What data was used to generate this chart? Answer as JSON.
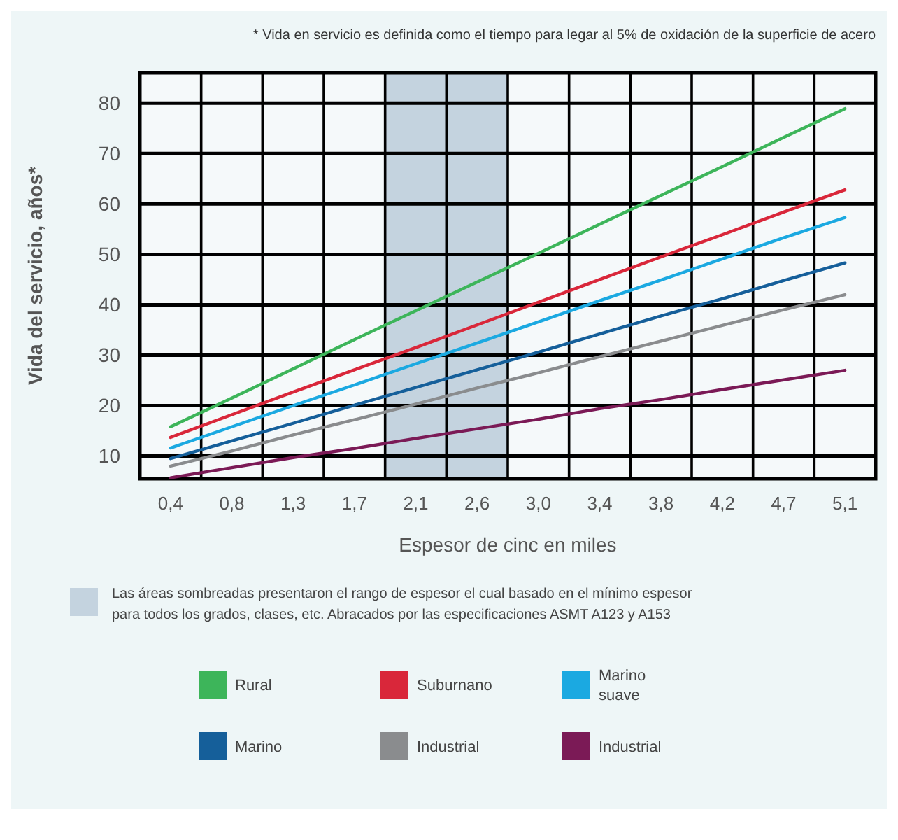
{
  "chart_data": {
    "type": "line",
    "xlabel": "Espesor de cinc en miles",
    "ylabel": "Vida del servicio, años*",
    "annotations": [
      "* Vida en servicio es definida como el tiempo para legar al 5% de oxidación de la superficie de acero"
    ],
    "categories": [
      "0,4",
      "0,8",
      "1,3",
      "1,7",
      "2,1",
      "2,6",
      "3,0",
      "3,4",
      "3,8",
      "4,2",
      "4,7",
      "5,1"
    ],
    "series": [
      {
        "name": "Rural",
        "color": "#3db55a",
        "values": [
          15.8,
          21.5,
          27.3,
          33.1,
          38.8,
          44.5,
          50.2,
          56.0,
          61.7,
          67.4,
          73.2,
          78.9
        ]
      },
      {
        "name": "Suburnano",
        "color": "#d9273a",
        "values": [
          13.7,
          18.2,
          22.7,
          27.1,
          31.5,
          36.0,
          40.5,
          45.0,
          49.5,
          53.9,
          58.4,
          62.8
        ]
      },
      {
        "name": "Marino suave",
        "color": "#1ba9e1",
        "values": [
          11.6,
          15.8,
          20.0,
          24.1,
          28.3,
          32.4,
          36.6,
          40.8,
          44.9,
          49.1,
          53.3,
          57.3
        ]
      },
      {
        "name": "Marino",
        "color": "#155f9a",
        "values": [
          9.5,
          13.0,
          16.5,
          20.1,
          23.6,
          27.1,
          30.6,
          34.2,
          37.8,
          41.2,
          44.8,
          48.3
        ]
      },
      {
        "name": "Industrial",
        "color": "#8a8c8e",
        "values": [
          8.0,
          11.0,
          14.2,
          17.2,
          20.3,
          23.5,
          26.5,
          29.7,
          32.8,
          35.9,
          39.0,
          42.0
        ]
      },
      {
        "name": "Industrial",
        "color": "#7b1a56",
        "values": [
          5.7,
          7.7,
          9.7,
          11.5,
          13.5,
          15.4,
          17.3,
          19.4,
          21.2,
          23.2,
          25.1,
          27.0
        ]
      }
    ],
    "ylim": [
      5.5,
      86
    ],
    "yticks": [
      10,
      20,
      30,
      40,
      50,
      60,
      70,
      80
    ],
    "grid": true,
    "legend": "bottom",
    "bands": [
      {
        "axis": "x",
        "from": "2,1",
        "to": "2,6",
        "color": "#c4d3df",
        "label": "Las áreas sombreadas presentaron el rango de espesor el cual basado en el mínimo espesor para todos los grados, clases, etc. Abracados por las especificaciones ASMT A123 y A153"
      }
    ]
  }
}
